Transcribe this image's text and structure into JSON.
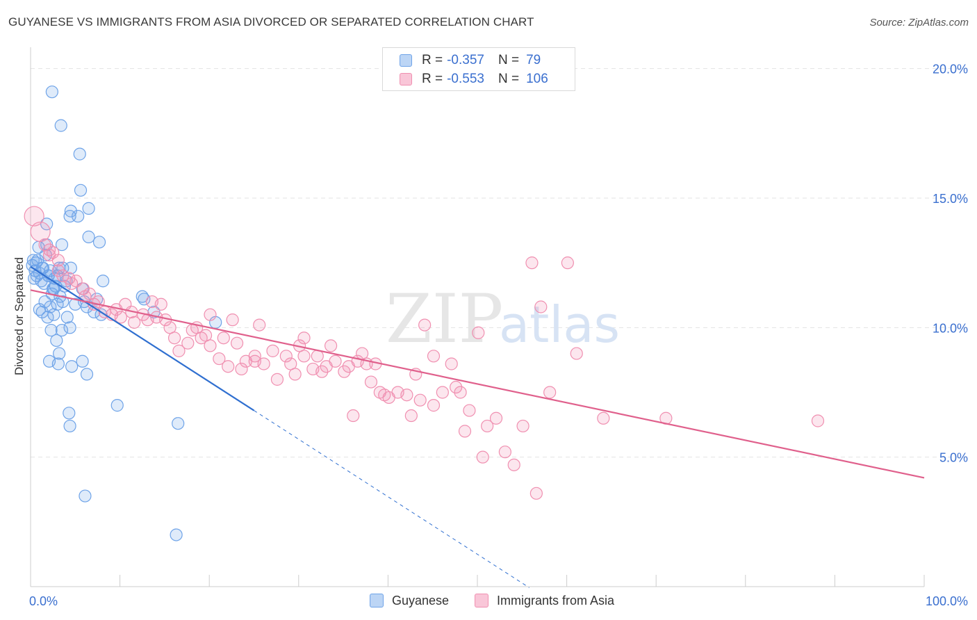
{
  "header": {
    "title": "GUYANESE VS IMMIGRANTS FROM ASIA DIVORCED OR SEPARATED CORRELATION CHART",
    "source": "Source: ZipAtlas.com"
  },
  "watermark": {
    "zip": "ZIP",
    "atlas": "atlas"
  },
  "legend": {
    "rows": [
      {
        "r_label": "R =",
        "r_value": "-0.357",
        "n_label": "N =",
        "n_value": "79",
        "color": "#6ea3e8"
      },
      {
        "r_label": "R =",
        "r_value": "-0.553",
        "n_label": "N =",
        "n_value": "106",
        "color": "#f08fb0"
      }
    ]
  },
  "bottom_legend": {
    "series1": "Guyanese",
    "series2": "Immigrants from Asia"
  },
  "chart_data": {
    "type": "scatter",
    "title": "GUYANESE VS IMMIGRANTS FROM ASIA DIVORCED OR SEPARATED CORRELATION CHART",
    "xlabel": "",
    "ylabel": "Divorced or Separated",
    "xlim": [
      0,
      100
    ],
    "ylim": [
      0,
      20.5
    ],
    "x_tick_labels": [
      "0.0%",
      "100.0%"
    ],
    "y_ticks": [
      5,
      10,
      15,
      20
    ],
    "y_tick_labels": [
      "5.0%",
      "10.0%",
      "15.0%",
      "20.0%"
    ],
    "grid": true,
    "series": [
      {
        "name": "Guyanese",
        "color": "#6ea3e8",
        "line_color": "#2f6fd0",
        "trend": {
          "x0": 0,
          "y0": 12.35,
          "x1": 25,
          "y1": 6.8,
          "dashed_to_x": 55.8
        },
        "points": [
          [
            0.2,
            12.4
          ],
          [
            0.5,
            12.2
          ],
          [
            0.8,
            12.6
          ],
          [
            0.4,
            11.9
          ],
          [
            1.0,
            12.1
          ],
          [
            1.3,
            12.3
          ],
          [
            0.9,
            13.1
          ],
          [
            1.7,
            12.8
          ],
          [
            0.6,
            12.5
          ],
          [
            1.2,
            11.8
          ],
          [
            1.5,
            11.7
          ],
          [
            2.0,
            12.0
          ],
          [
            1.8,
            13.2
          ],
          [
            2.2,
            12.2
          ],
          [
            2.5,
            11.5
          ],
          [
            3.0,
            12.0
          ],
          [
            2.8,
            11.6
          ],
          [
            3.5,
            13.2
          ],
          [
            3.2,
            12.3
          ],
          [
            4.0,
            11.8
          ],
          [
            4.5,
            12.3
          ],
          [
            2.4,
            11.3
          ],
          [
            1.6,
            11.0
          ],
          [
            1.3,
            10.6
          ],
          [
            2.6,
            10.5
          ],
          [
            3.6,
            11.0
          ],
          [
            4.1,
            10.4
          ],
          [
            1.9,
            10.4
          ],
          [
            3.0,
            10.9
          ],
          [
            2.2,
            10.8
          ],
          [
            1.0,
            10.7
          ],
          [
            2.3,
            9.9
          ],
          [
            3.5,
            9.9
          ],
          [
            2.9,
            9.5
          ],
          [
            4.4,
            10.0
          ],
          [
            3.2,
            9.0
          ],
          [
            2.1,
            8.7
          ],
          [
            3.1,
            8.6
          ],
          [
            4.6,
            8.5
          ],
          [
            5.8,
            8.7
          ],
          [
            6.3,
            8.2
          ],
          [
            4.3,
            6.7
          ],
          [
            4.4,
            6.2
          ],
          [
            9.7,
            7.0
          ],
          [
            16.5,
            6.3
          ],
          [
            16.3,
            2.0
          ],
          [
            6.1,
            3.5
          ],
          [
            2.4,
            19.1
          ],
          [
            3.4,
            17.8
          ],
          [
            5.5,
            16.7
          ],
          [
            5.6,
            15.3
          ],
          [
            6.5,
            14.6
          ],
          [
            4.5,
            14.5
          ],
          [
            4.4,
            14.3
          ],
          [
            5.3,
            14.3
          ],
          [
            1.8,
            14.0
          ],
          [
            6.5,
            13.5
          ],
          [
            7.7,
            13.3
          ],
          [
            3.6,
            12.3
          ],
          [
            5.8,
            11.5
          ],
          [
            6.3,
            10.8
          ],
          [
            6.0,
            11.0
          ],
          [
            7.1,
            10.6
          ],
          [
            7.4,
            11.1
          ],
          [
            7.9,
            10.5
          ],
          [
            8.1,
            11.8
          ],
          [
            12.5,
            11.2
          ],
          [
            12.7,
            11.1
          ],
          [
            13.8,
            10.6
          ],
          [
            20.7,
            10.2
          ],
          [
            2.7,
            11.9
          ],
          [
            1.4,
            12.3
          ],
          [
            0.3,
            12.6
          ],
          [
            0.7,
            12.0
          ],
          [
            3.8,
            11.6
          ],
          [
            5.0,
            10.9
          ],
          [
            2.0,
            12.0
          ],
          [
            2.6,
            11.5
          ],
          [
            3.3,
            11.2
          ]
        ]
      },
      {
        "name": "Immigrants from Asia",
        "color": "#f08fb0",
        "line_color": "#e0608c",
        "trend": {
          "x0": 0,
          "y0": 11.45,
          "x1": 100,
          "y1": 4.2
        },
        "points": [
          [
            0.4,
            14.3
          ],
          [
            1.1,
            13.7
          ],
          [
            2.1,
            13.0
          ],
          [
            2.5,
            12.9
          ],
          [
            3.1,
            12.2
          ],
          [
            3.6,
            12.0
          ],
          [
            4.3,
            11.9
          ],
          [
            5.1,
            11.8
          ],
          [
            5.9,
            11.5
          ],
          [
            6.6,
            11.3
          ],
          [
            7.1,
            10.9
          ],
          [
            7.6,
            11.0
          ],
          [
            8.3,
            10.6
          ],
          [
            9.1,
            10.5
          ],
          [
            10.1,
            10.4
          ],
          [
            10.6,
            10.9
          ],
          [
            11.3,
            10.6
          ],
          [
            11.6,
            10.2
          ],
          [
            12.6,
            10.5
          ],
          [
            13.1,
            10.3
          ],
          [
            14.1,
            10.4
          ],
          [
            14.6,
            10.9
          ],
          [
            15.1,
            10.3
          ],
          [
            15.6,
            10.0
          ],
          [
            16.1,
            9.6
          ],
          [
            16.6,
            9.1
          ],
          [
            17.6,
            9.4
          ],
          [
            18.1,
            9.9
          ],
          [
            18.6,
            10.0
          ],
          [
            19.1,
            9.6
          ],
          [
            19.6,
            9.7
          ],
          [
            20.1,
            9.3
          ],
          [
            21.1,
            8.8
          ],
          [
            21.6,
            9.6
          ],
          [
            22.1,
            8.5
          ],
          [
            23.1,
            9.4
          ],
          [
            23.6,
            8.4
          ],
          [
            24.1,
            8.7
          ],
          [
            25.1,
            8.7
          ],
          [
            26.1,
            8.6
          ],
          [
            27.1,
            9.1
          ],
          [
            27.6,
            8.0
          ],
          [
            28.6,
            8.9
          ],
          [
            29.1,
            8.6
          ],
          [
            29.6,
            8.2
          ],
          [
            30.1,
            9.3
          ],
          [
            30.6,
            9.6
          ],
          [
            31.6,
            8.4
          ],
          [
            32.1,
            8.9
          ],
          [
            32.6,
            8.3
          ],
          [
            33.1,
            8.5
          ],
          [
            34.1,
            8.7
          ],
          [
            35.1,
            8.3
          ],
          [
            35.6,
            8.5
          ],
          [
            36.6,
            8.7
          ],
          [
            37.1,
            9.0
          ],
          [
            37.6,
            8.6
          ],
          [
            38.1,
            7.9
          ],
          [
            38.6,
            8.6
          ],
          [
            39.1,
            7.5
          ],
          [
            39.6,
            7.4
          ],
          [
            40.1,
            7.3
          ],
          [
            41.1,
            7.5
          ],
          [
            42.1,
            7.4
          ],
          [
            43.1,
            8.2
          ],
          [
            43.6,
            7.2
          ],
          [
            44.1,
            10.1
          ],
          [
            45.1,
            7.0
          ],
          [
            46.1,
            7.5
          ],
          [
            47.1,
            8.6
          ],
          [
            47.6,
            7.7
          ],
          [
            48.1,
            7.5
          ],
          [
            48.6,
            6.0
          ],
          [
            49.1,
            6.8
          ],
          [
            50.1,
            9.8
          ],
          [
            50.6,
            5.0
          ],
          [
            51.1,
            6.2
          ],
          [
            52.1,
            6.5
          ],
          [
            53.1,
            5.2
          ],
          [
            54.1,
            4.7
          ],
          [
            55.1,
            6.2
          ],
          [
            56.1,
            12.5
          ],
          [
            56.6,
            3.6
          ],
          [
            57.1,
            10.8
          ],
          [
            58.1,
            7.5
          ],
          [
            60.1,
            12.5
          ],
          [
            61.1,
            9.0
          ],
          [
            64.1,
            6.5
          ],
          [
            88.1,
            6.4
          ],
          [
            71.1,
            6.5
          ],
          [
            36.1,
            6.6
          ],
          [
            42.6,
            6.6
          ],
          [
            33.6,
            9.3
          ],
          [
            30.6,
            8.9
          ],
          [
            25.6,
            10.1
          ],
          [
            22.6,
            10.3
          ],
          [
            20.1,
            10.5
          ],
          [
            13.6,
            11.0
          ],
          [
            9.6,
            10.7
          ],
          [
            6.1,
            11.2
          ],
          [
            4.6,
            11.7
          ],
          [
            3.1,
            12.6
          ],
          [
            2.1,
            12.8
          ],
          [
            1.6,
            13.2
          ],
          [
            25.1,
            8.9
          ],
          [
            45.1,
            8.9
          ]
        ]
      }
    ]
  }
}
